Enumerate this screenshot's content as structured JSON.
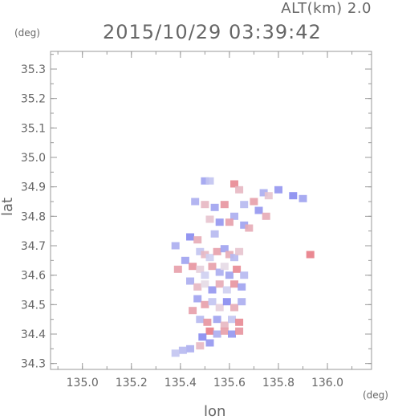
{
  "header": {
    "alt_label": "ALT(km) 2.0",
    "timestamp": "2015/10/29 03:39:42"
  },
  "chart_data": {
    "type": "heatmap",
    "title": "2015/10/29 03:39:42",
    "subtitle": "ALT(km) 2.0",
    "xlabel": "lon",
    "ylabel": "lat",
    "xunit": "(deg)",
    "yunit": "(deg)",
    "xlim": [
      134.87,
      136.18
    ],
    "ylim": [
      34.28,
      35.36
    ],
    "xticks": [
      135.0,
      135.2,
      135.4,
      135.6,
      135.8,
      136.0
    ],
    "yticks": [
      34.3,
      34.4,
      34.5,
      34.6,
      34.7,
      34.8,
      34.9,
      35.0,
      35.1,
      35.2,
      35.3
    ],
    "xtick_labels": [
      "135.0",
      "135.2",
      "135.4",
      "135.6",
      "135.8",
      "136.0"
    ],
    "ytick_labels": [
      "34.3",
      "34.4",
      "34.5",
      "34.6",
      "34.7",
      "34.8",
      "34.9",
      "35.0",
      "35.1",
      "35.2",
      "35.3"
    ],
    "colors": {
      "positive": "#e8707a",
      "negative": "#6f74ee",
      "near_zero": "#e6e6f2",
      "frame": "#999999"
    },
    "cells": [
      {
        "lon": 135.5,
        "lat": 34.92,
        "v": -0.6
      },
      {
        "lon": 135.52,
        "lat": 34.92,
        "v": -0.3
      },
      {
        "lon": 135.62,
        "lat": 34.91,
        "v": 0.8
      },
      {
        "lon": 135.64,
        "lat": 34.89,
        "v": 0.4
      },
      {
        "lon": 135.74,
        "lat": 34.88,
        "v": -0.5
      },
      {
        "lon": 135.76,
        "lat": 34.87,
        "v": 0.3
      },
      {
        "lon": 135.8,
        "lat": 34.89,
        "v": -0.7
      },
      {
        "lon": 135.86,
        "lat": 34.87,
        "v": -0.8
      },
      {
        "lon": 135.9,
        "lat": 34.86,
        "v": -0.6
      },
      {
        "lon": 135.46,
        "lat": 34.85,
        "v": -0.5
      },
      {
        "lon": 135.5,
        "lat": 34.84,
        "v": 0.4
      },
      {
        "lon": 135.54,
        "lat": 34.83,
        "v": -0.6
      },
      {
        "lon": 135.58,
        "lat": 34.84,
        "v": 0.7
      },
      {
        "lon": 135.66,
        "lat": 34.84,
        "v": -0.4
      },
      {
        "lon": 135.7,
        "lat": 34.85,
        "v": 0.6
      },
      {
        "lon": 135.72,
        "lat": 34.82,
        "v": -0.7
      },
      {
        "lon": 135.75,
        "lat": 34.8,
        "v": 0.5
      },
      {
        "lon": 135.62,
        "lat": 34.8,
        "v": -0.5
      },
      {
        "lon": 135.6,
        "lat": 34.78,
        "v": 0.6
      },
      {
        "lon": 135.66,
        "lat": 34.77,
        "v": -0.6
      },
      {
        "lon": 135.68,
        "lat": 34.76,
        "v": 0.5
      },
      {
        "lon": 135.52,
        "lat": 34.79,
        "v": 0.3
      },
      {
        "lon": 135.56,
        "lat": 34.78,
        "v": -0.7
      },
      {
        "lon": 135.54,
        "lat": 34.74,
        "v": -0.4
      },
      {
        "lon": 135.44,
        "lat": 34.73,
        "v": -0.8
      },
      {
        "lon": 135.47,
        "lat": 34.72,
        "v": 0.5
      },
      {
        "lon": 135.38,
        "lat": 34.7,
        "v": -0.5
      },
      {
        "lon": 135.93,
        "lat": 34.67,
        "v": 0.9
      },
      {
        "lon": 135.48,
        "lat": 34.68,
        "v": -0.3
      },
      {
        "lon": 135.5,
        "lat": 34.67,
        "v": 0.4
      },
      {
        "lon": 135.52,
        "lat": 34.66,
        "v": -0.2
      },
      {
        "lon": 135.55,
        "lat": 34.68,
        "v": 0.6
      },
      {
        "lon": 135.58,
        "lat": 34.69,
        "v": -0.6
      },
      {
        "lon": 135.6,
        "lat": 34.67,
        "v": 0.5
      },
      {
        "lon": 135.62,
        "lat": 34.66,
        "v": -0.4
      },
      {
        "lon": 135.64,
        "lat": 34.68,
        "v": 0.3
      },
      {
        "lon": 135.42,
        "lat": 34.65,
        "v": -0.6
      },
      {
        "lon": 135.45,
        "lat": 34.63,
        "v": 0.7
      },
      {
        "lon": 135.48,
        "lat": 34.62,
        "v": 0.2
      },
      {
        "lon": 135.5,
        "lat": 34.6,
        "v": -0.2
      },
      {
        "lon": 135.53,
        "lat": 34.63,
        "v": 0.6
      },
      {
        "lon": 135.56,
        "lat": 34.61,
        "v": -0.5
      },
      {
        "lon": 135.58,
        "lat": 34.63,
        "v": 0.1
      },
      {
        "lon": 135.6,
        "lat": 34.6,
        "v": -0.6
      },
      {
        "lon": 135.63,
        "lat": 34.62,
        "v": 0.8
      },
      {
        "lon": 135.66,
        "lat": 34.6,
        "v": -0.4
      },
      {
        "lon": 135.39,
        "lat": 34.62,
        "v": 0.6
      },
      {
        "lon": 135.44,
        "lat": 34.58,
        "v": -0.5
      },
      {
        "lon": 135.47,
        "lat": 34.56,
        "v": 0.4
      },
      {
        "lon": 135.5,
        "lat": 34.57,
        "v": 0.1
      },
      {
        "lon": 135.53,
        "lat": 34.55,
        "v": -0.7
      },
      {
        "lon": 135.56,
        "lat": 34.57,
        "v": 0.5
      },
      {
        "lon": 135.59,
        "lat": 34.55,
        "v": -0.2
      },
      {
        "lon": 135.62,
        "lat": 34.57,
        "v": 0.7
      },
      {
        "lon": 135.65,
        "lat": 34.56,
        "v": -0.6
      },
      {
        "lon": 135.47,
        "lat": 34.52,
        "v": -0.6
      },
      {
        "lon": 135.5,
        "lat": 34.5,
        "v": 0.6
      },
      {
        "lon": 135.53,
        "lat": 34.51,
        "v": -0.3
      },
      {
        "lon": 135.56,
        "lat": 34.49,
        "v": 0.2
      },
      {
        "lon": 135.59,
        "lat": 34.51,
        "v": -0.8
      },
      {
        "lon": 135.62,
        "lat": 34.49,
        "v": 0.5
      },
      {
        "lon": 135.65,
        "lat": 34.51,
        "v": -0.5
      },
      {
        "lon": 135.45,
        "lat": 34.48,
        "v": 0.6
      },
      {
        "lon": 135.48,
        "lat": 34.45,
        "v": -0.4
      },
      {
        "lon": 135.51,
        "lat": 34.44,
        "v": 0.7
      },
      {
        "lon": 135.55,
        "lat": 34.45,
        "v": -0.6
      },
      {
        "lon": 135.58,
        "lat": 34.43,
        "v": 0.4
      },
      {
        "lon": 135.61,
        "lat": 34.45,
        "v": -0.3
      },
      {
        "lon": 135.64,
        "lat": 34.44,
        "v": 0.8
      },
      {
        "lon": 135.52,
        "lat": 34.41,
        "v": 0.9
      },
      {
        "lon": 135.55,
        "lat": 34.4,
        "v": -0.5
      },
      {
        "lon": 135.58,
        "lat": 34.41,
        "v": 0.6
      },
      {
        "lon": 135.61,
        "lat": 34.4,
        "v": -0.7
      },
      {
        "lon": 135.64,
        "lat": 34.41,
        "v": 0.7
      },
      {
        "lon": 135.49,
        "lat": 34.39,
        "v": -0.8
      },
      {
        "lon": 135.52,
        "lat": 34.37,
        "v": -0.7
      },
      {
        "lon": 135.48,
        "lat": 34.36,
        "v": 0.4
      },
      {
        "lon": 135.44,
        "lat": 34.35,
        "v": -0.5
      },
      {
        "lon": 135.41,
        "lat": 34.345,
        "v": -0.4
      },
      {
        "lon": 135.38,
        "lat": 34.335,
        "v": -0.3
      }
    ]
  }
}
